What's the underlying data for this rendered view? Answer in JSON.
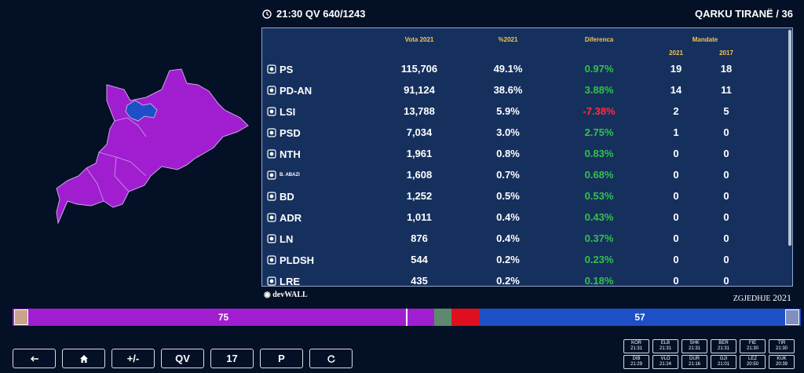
{
  "header": {
    "clock_text": "21:30 QV 640/1243",
    "region_title": "QARKU TIRANË / 36"
  },
  "table": {
    "col_votes": "Vota 2021",
    "col_pct": "%2021",
    "col_diff": "Diferenca",
    "col_mandates": "Mandate",
    "col_m2021": "2021",
    "col_m2017": "2017",
    "rows": [
      {
        "party": "PS",
        "votes": "115,706",
        "pct": "49.1%",
        "diff": "0.97%",
        "sign": "pos",
        "m2021": "19",
        "m2017": "18",
        "icon": "ps-logo-icon"
      },
      {
        "party": "PD-AN",
        "votes": "91,124",
        "pct": "38.6%",
        "diff": "3.88%",
        "sign": "pos",
        "m2021": "14",
        "m2017": "11",
        "icon": "pd-logo-icon"
      },
      {
        "party": "LSI",
        "votes": "13,788",
        "pct": "5.9%",
        "diff": "-7.38%",
        "sign": "neg",
        "m2021": "2",
        "m2017": "5",
        "icon": "lsi-logo-icon"
      },
      {
        "party": "PSD",
        "votes": "7,034",
        "pct": "3.0%",
        "diff": "2.75%",
        "sign": "pos",
        "m2021": "1",
        "m2017": "0",
        "icon": "psd-logo-icon"
      },
      {
        "party": "NTH",
        "votes": "1,961",
        "pct": "0.8%",
        "diff": "0.83%",
        "sign": "pos",
        "m2021": "0",
        "m2017": "0",
        "icon": "nth-logo-icon"
      },
      {
        "party": "B. ABAZI",
        "votes": "1,608",
        "pct": "0.7%",
        "diff": "0.68%",
        "sign": "pos",
        "m2021": "0",
        "m2017": "0",
        "icon": "abazi-logo-icon",
        "small": true
      },
      {
        "party": "BD",
        "votes": "1,252",
        "pct": "0.5%",
        "diff": "0.53%",
        "sign": "pos",
        "m2021": "0",
        "m2017": "0",
        "icon": "bd-logo-icon"
      },
      {
        "party": "ADR",
        "votes": "1,011",
        "pct": "0.4%",
        "diff": "0.43%",
        "sign": "pos",
        "m2021": "0",
        "m2017": "0",
        "icon": "adr-logo-icon"
      },
      {
        "party": "LN",
        "votes": "876",
        "pct": "0.4%",
        "diff": "0.37%",
        "sign": "pos",
        "m2021": "0",
        "m2017": "0",
        "icon": "ln-logo-icon"
      },
      {
        "party": "PLDSH",
        "votes": "544",
        "pct": "0.2%",
        "diff": "0.23%",
        "sign": "pos",
        "m2021": "0",
        "m2017": "0",
        "icon": "pldsh-logo-icon"
      },
      {
        "party": "LRE",
        "votes": "435",
        "pct": "0.2%",
        "diff": "0.18%",
        "sign": "pos",
        "m2021": "0",
        "m2017": "0",
        "icon": "lre-logo-icon"
      }
    ]
  },
  "brand": {
    "prefix": "◉",
    "name": "devWALL"
  },
  "election_label": {
    "text": "ZGJEDHJE",
    "year": "2021"
  },
  "seat_bar": {
    "left_value": "75",
    "right_value": "57",
    "colors": {
      "left": "#a01ed0",
      "mid1": "#5d8a6e",
      "mid2": "#e00f1f",
      "right": "#1d4fc7"
    }
  },
  "controls": [
    {
      "name": "back-button",
      "label": "",
      "icon": "arrow-left-icon"
    },
    {
      "name": "home-button",
      "label": "",
      "icon": "home-icon"
    },
    {
      "name": "plus-minus-button",
      "label": "+/-"
    },
    {
      "name": "qv-button",
      "label": "QV"
    },
    {
      "name": "number-button",
      "label": "17"
    },
    {
      "name": "p-button",
      "label": "P"
    },
    {
      "name": "refresh-button",
      "label": "",
      "icon": "refresh-icon"
    }
  ],
  "districts": [
    {
      "code": "KOR",
      "time": "21:31"
    },
    {
      "code": "ELB",
      "time": "21:31"
    },
    {
      "code": "SHK",
      "time": "21:31"
    },
    {
      "code": "BER",
      "time": "21:31"
    },
    {
      "code": "FIE",
      "time": "21:30"
    },
    {
      "code": "TIR",
      "time": "21:30"
    },
    {
      "code": "DIB",
      "time": "21:29"
    },
    {
      "code": "VLO",
      "time": "21:24"
    },
    {
      "code": "DUR",
      "time": "21:16"
    },
    {
      "code": "GJI",
      "time": "21:01"
    },
    {
      "code": "LEZ",
      "time": "20:50"
    },
    {
      "code": "KUK",
      "time": "20:39"
    }
  ]
}
